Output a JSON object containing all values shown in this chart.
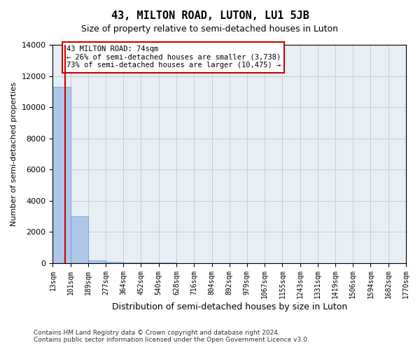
{
  "title": "43, MILTON ROAD, LUTON, LU1 5JB",
  "subtitle": "Size of property relative to semi-detached houses in Luton",
  "xlabel": "Distribution of semi-detached houses by size in Luton",
  "ylabel": "Number of semi-detached properties",
  "property_size": 74,
  "property_label": "43 MILTON ROAD: 74sqm",
  "pct_smaller": 26,
  "pct_larger": 73,
  "n_smaller": 3738,
  "n_larger": 10475,
  "annotation_line1": "43 MILTON ROAD: 74sqm",
  "annotation_line2": "← 26% of semi-detached houses are smaller (3,738)",
  "annotation_line3": "73% of semi-detached houses are larger (10,475) →",
  "bin_edges": [
    13,
    101,
    189,
    277,
    364,
    452,
    540,
    628,
    716,
    804,
    892,
    979,
    1067,
    1155,
    1243,
    1331,
    1419,
    1506,
    1594,
    1682,
    1770
  ],
  "bin_labels": [
    "13sqm",
    "101sqm",
    "189sqm",
    "277sqm",
    "364sqm",
    "452sqm",
    "540sqm",
    "628sqm",
    "716sqm",
    "804sqm",
    "892sqm",
    "979sqm",
    "1067sqm",
    "1155sqm",
    "1243sqm",
    "1331sqm",
    "1419sqm",
    "1506sqm",
    "1594sqm",
    "1682sqm",
    "1770sqm"
  ],
  "bar_heights": [
    11300,
    3000,
    150,
    50,
    20,
    10,
    5,
    3,
    2,
    2,
    2,
    1,
    1,
    1,
    1,
    1,
    1,
    1,
    1,
    1
  ],
  "bar_color": "#aec6e8",
  "bar_edge_color": "#5a9fd4",
  "vline_color": "#cc0000",
  "vline_x": 74,
  "ylim": [
    0,
    14000
  ],
  "yticks": [
    0,
    2000,
    4000,
    6000,
    8000,
    10000,
    12000,
    14000
  ],
  "grid_color": "#cccccc",
  "bg_color": "#e8eef5",
  "footer_line1": "Contains HM Land Registry data © Crown copyright and database right 2024.",
  "footer_line2": "Contains public sector information licensed under the Open Government Licence v3.0.",
  "annotation_box_color": "#ffcccc",
  "annotation_box_edge": "#cc0000"
}
